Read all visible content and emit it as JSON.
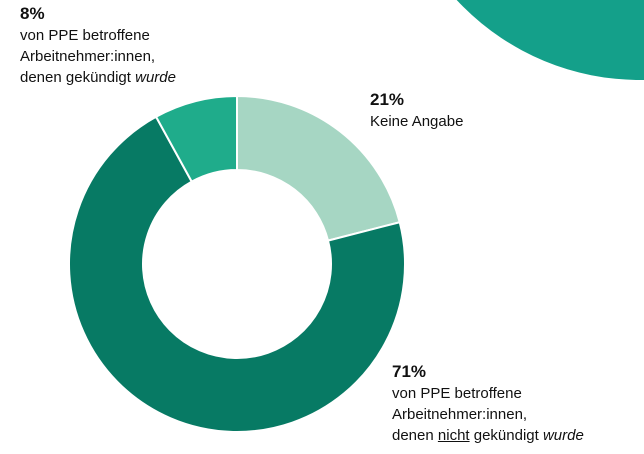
{
  "chart_data": {
    "type": "pie",
    "values": [
      21,
      71,
      8
    ],
    "value_labels": [
      "21%",
      "71%",
      "8%"
    ],
    "colors": [
      "#a6d6c3",
      "#077a64",
      "#1fac8b"
    ],
    "donut": true,
    "labels": [
      [
        [
          {
            "text": "Keine Angabe"
          }
        ]
      ],
      [
        [
          {
            "text": "von PPE betroffene"
          }
        ],
        [
          {
            "text": "Arbeitnehmer:innen,"
          }
        ],
        [
          {
            "text": "denen "
          },
          {
            "text": "nicht",
            "underline": true
          },
          {
            "text": " gekündigt "
          },
          {
            "text": "wurde",
            "italic": true
          }
        ]
      ],
      [
        [
          {
            "text": "von PPE betroffene"
          }
        ],
        [
          {
            "text": "Arbeitnehmer:innen,"
          }
        ],
        [
          {
            "text": "denen gekündigt "
          },
          {
            "text": "wurde",
            "italic": true
          }
        ]
      ]
    ]
  }
}
